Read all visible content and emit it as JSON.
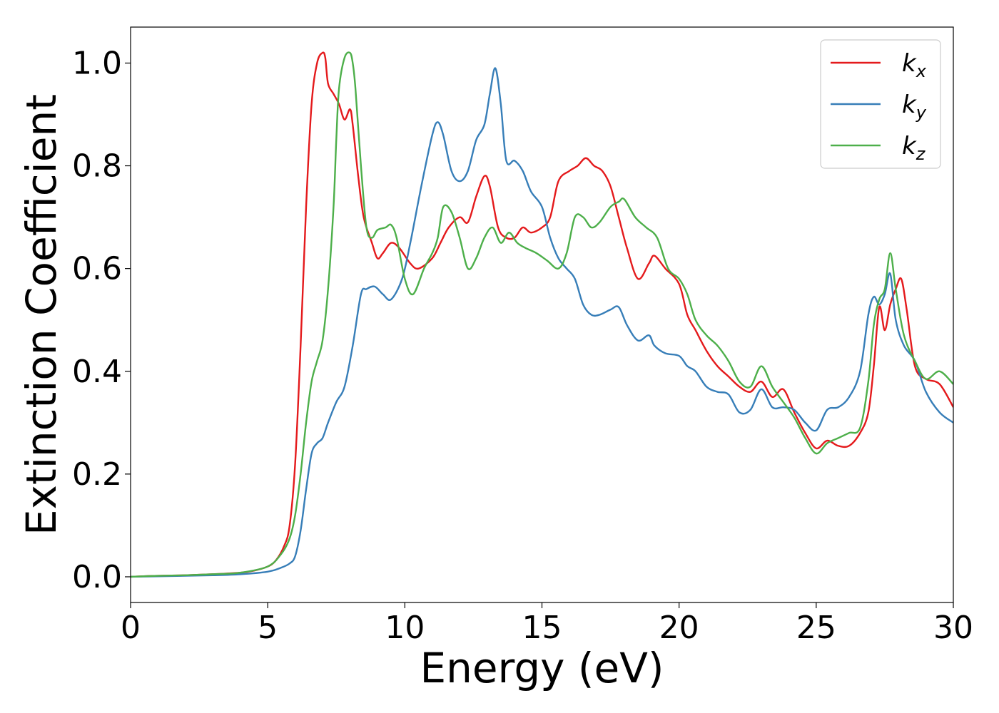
{
  "chart_data": {
    "type": "line",
    "xlabel": "Energy (eV)",
    "ylabel": "Extinction Coefficient",
    "xlim": [
      0,
      30
    ],
    "ylim": [
      -0.05,
      1.07
    ],
    "xticks": [
      0,
      5,
      10,
      15,
      20,
      25,
      30
    ],
    "xtick_labels": [
      "0",
      "5",
      "10",
      "15",
      "20",
      "25",
      "30"
    ],
    "yticks": [
      0.0,
      0.2,
      0.4,
      0.6,
      0.8,
      1.0
    ],
    "ytick_labels": [
      "0.0",
      "0.2",
      "0.4",
      "0.6",
      "0.8",
      "1.0"
    ],
    "grid": false,
    "legend_position": "top-right",
    "series": [
      {
        "name": "kx",
        "label_base": "k",
        "label_sub": "x",
        "color": "#e41a1c",
        "x": [
          0,
          1,
          2,
          3,
          4,
          4.5,
          5,
          5.3,
          5.6,
          5.8,
          6,
          6.2,
          6.4,
          6.6,
          6.8,
          7,
          7.1,
          7.2,
          7.4,
          7.6,
          7.8,
          8,
          8.1,
          8.3,
          8.5,
          8.8,
          9,
          9.2,
          9.5,
          9.8,
          10.2,
          10.5,
          11,
          11.3,
          11.6,
          12,
          12.3,
          12.6,
          12.9,
          13.1,
          13.4,
          13.7,
          14,
          14.3,
          14.6,
          15,
          15.3,
          15.6,
          16,
          16.3,
          16.6,
          16.9,
          17.2,
          17.5,
          17.8,
          18.1,
          18.5,
          18.9,
          19.1,
          19.5,
          20,
          20.3,
          20.6,
          21,
          21.4,
          21.8,
          22.2,
          22.6,
          23,
          23.4,
          23.8,
          24.2,
          24.6,
          25,
          25.4,
          25.8,
          26.2,
          26.6,
          26.9,
          27.1,
          27.3,
          27.5,
          27.7,
          27.9,
          28.1,
          28.3,
          28.6,
          29,
          29.5,
          30
        ],
        "y": [
          0,
          0.002,
          0.003,
          0.005,
          0.008,
          0.012,
          0.02,
          0.032,
          0.06,
          0.1,
          0.22,
          0.45,
          0.72,
          0.92,
          1.0,
          1.02,
          1.01,
          0.96,
          0.94,
          0.92,
          0.89,
          0.91,
          0.88,
          0.78,
          0.7,
          0.65,
          0.62,
          0.63,
          0.65,
          0.64,
          0.61,
          0.6,
          0.62,
          0.65,
          0.68,
          0.7,
          0.69,
          0.74,
          0.78,
          0.76,
          0.68,
          0.66,
          0.66,
          0.68,
          0.67,
          0.68,
          0.7,
          0.77,
          0.79,
          0.8,
          0.815,
          0.8,
          0.79,
          0.76,
          0.7,
          0.64,
          0.58,
          0.61,
          0.625,
          0.6,
          0.57,
          0.51,
          0.48,
          0.44,
          0.41,
          0.39,
          0.37,
          0.36,
          0.38,
          0.35,
          0.365,
          0.32,
          0.28,
          0.25,
          0.265,
          0.255,
          0.255,
          0.28,
          0.32,
          0.41,
          0.525,
          0.48,
          0.53,
          0.56,
          0.58,
          0.52,
          0.41,
          0.385,
          0.375,
          0.33
        ]
      },
      {
        "name": "ky",
        "label_base": "k",
        "label_sub": "y",
        "color": "#377eb8",
        "x": [
          0,
          1,
          2,
          3,
          4,
          5,
          5.5,
          5.8,
          6,
          6.2,
          6.4,
          6.6,
          6.8,
          7,
          7.2,
          7.5,
          7.8,
          8.1,
          8.4,
          8.6,
          8.9,
          9.2,
          9.5,
          9.9,
          10.2,
          10.6,
          11,
          11.2,
          11.4,
          11.7,
          12,
          12.3,
          12.6,
          12.9,
          13.1,
          13.3,
          13.5,
          13.7,
          14,
          14.3,
          14.6,
          15,
          15.3,
          15.6,
          15.9,
          16.2,
          16.5,
          16.8,
          17.1,
          17.5,
          17.8,
          18.1,
          18.5,
          18.9,
          19.1,
          19.5,
          20,
          20.3,
          20.6,
          21,
          21.4,
          21.8,
          22.2,
          22.6,
          23,
          23.4,
          23.8,
          24.2,
          24.6,
          25,
          25.4,
          25.8,
          26.2,
          26.6,
          26.9,
          27.1,
          27.3,
          27.5,
          27.7,
          27.9,
          28.2,
          28.6,
          29,
          29.5,
          30
        ],
        "y": [
          0,
          0.001,
          0.002,
          0.003,
          0.005,
          0.01,
          0.018,
          0.026,
          0.04,
          0.09,
          0.17,
          0.24,
          0.26,
          0.27,
          0.3,
          0.34,
          0.37,
          0.45,
          0.55,
          0.56,
          0.565,
          0.55,
          0.54,
          0.58,
          0.65,
          0.76,
          0.86,
          0.885,
          0.86,
          0.79,
          0.77,
          0.79,
          0.85,
          0.88,
          0.94,
          0.99,
          0.92,
          0.81,
          0.81,
          0.79,
          0.75,
          0.72,
          0.66,
          0.62,
          0.6,
          0.58,
          0.53,
          0.51,
          0.51,
          0.52,
          0.525,
          0.49,
          0.46,
          0.47,
          0.45,
          0.435,
          0.43,
          0.41,
          0.4,
          0.37,
          0.36,
          0.355,
          0.32,
          0.325,
          0.365,
          0.33,
          0.33,
          0.325,
          0.3,
          0.285,
          0.325,
          0.33,
          0.35,
          0.4,
          0.51,
          0.545,
          0.53,
          0.55,
          0.59,
          0.5,
          0.45,
          0.42,
          0.36,
          0.32,
          0.3
        ]
      },
      {
        "name": "kz",
        "label_base": "k",
        "label_sub": "z",
        "color": "#4daf4a",
        "x": [
          0,
          1,
          2,
          3,
          4,
          5,
          5.5,
          5.8,
          6,
          6.2,
          6.4,
          6.6,
          6.8,
          7,
          7.2,
          7.4,
          7.5,
          7.6,
          7.8,
          8,
          8.1,
          8.2,
          8.4,
          8.6,
          8.8,
          9,
          9.3,
          9.5,
          9.7,
          10,
          10.3,
          10.7,
          11,
          11.2,
          11.4,
          11.7,
          12,
          12.3,
          12.6,
          12.9,
          13.2,
          13.5,
          13.8,
          14.1,
          14.4,
          14.8,
          15.2,
          15.6,
          15.9,
          16.2,
          16.5,
          16.8,
          17.1,
          17.5,
          17.8,
          18,
          18.4,
          18.8,
          19.2,
          19.6,
          20,
          20.3,
          20.6,
          21,
          21.4,
          21.8,
          22.2,
          22.6,
          23,
          23.4,
          23.8,
          24.2,
          24.6,
          25,
          25.4,
          25.8,
          26.2,
          26.6,
          26.9,
          27.1,
          27.3,
          27.5,
          27.7,
          27.9,
          28.2,
          28.6,
          29,
          29.5,
          30
        ],
        "y": [
          0,
          0.002,
          0.003,
          0.005,
          0.008,
          0.02,
          0.045,
          0.075,
          0.12,
          0.2,
          0.3,
          0.38,
          0.42,
          0.46,
          0.56,
          0.72,
          0.85,
          0.95,
          1.01,
          1.02,
          1.0,
          0.95,
          0.8,
          0.68,
          0.66,
          0.675,
          0.68,
          0.685,
          0.66,
          0.58,
          0.55,
          0.6,
          0.63,
          0.66,
          0.72,
          0.71,
          0.66,
          0.6,
          0.62,
          0.66,
          0.68,
          0.65,
          0.67,
          0.65,
          0.64,
          0.63,
          0.615,
          0.6,
          0.63,
          0.7,
          0.7,
          0.68,
          0.69,
          0.72,
          0.73,
          0.735,
          0.7,
          0.68,
          0.66,
          0.6,
          0.58,
          0.55,
          0.5,
          0.47,
          0.45,
          0.42,
          0.38,
          0.37,
          0.41,
          0.37,
          0.34,
          0.31,
          0.27,
          0.24,
          0.26,
          0.27,
          0.28,
          0.29,
          0.38,
          0.49,
          0.54,
          0.56,
          0.63,
          0.56,
          0.47,
          0.42,
          0.385,
          0.4,
          0.375
        ]
      }
    ]
  }
}
